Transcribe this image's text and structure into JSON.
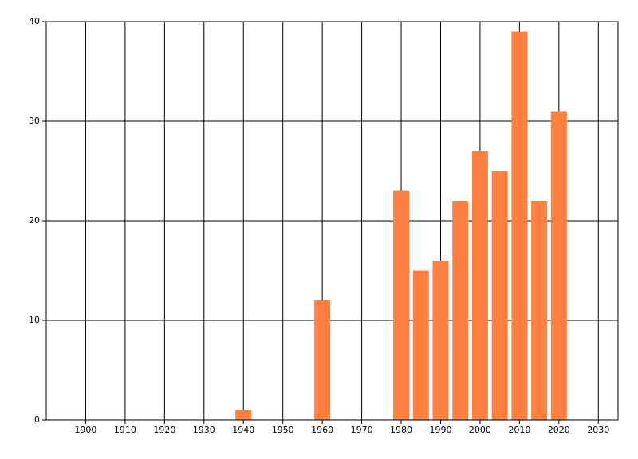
{
  "chart_data": {
    "type": "bar",
    "x": [
      1940,
      1960,
      1980,
      1985,
      1990,
      1995,
      2000,
      2005,
      2010,
      2015,
      2020
    ],
    "values": [
      1,
      12,
      23,
      15,
      16,
      22,
      27,
      25,
      39,
      22,
      31
    ],
    "color": "#ff8040",
    "xlim": [
      1890,
      2035
    ],
    "xticks": [
      1900,
      1910,
      1920,
      1930,
      1940,
      1950,
      1960,
      1970,
      1980,
      1990,
      2000,
      2010,
      2020,
      2030
    ],
    "ylim": [
      0,
      40
    ],
    "yticks": [
      0,
      10,
      20,
      30,
      40
    ],
    "grid": true
  }
}
